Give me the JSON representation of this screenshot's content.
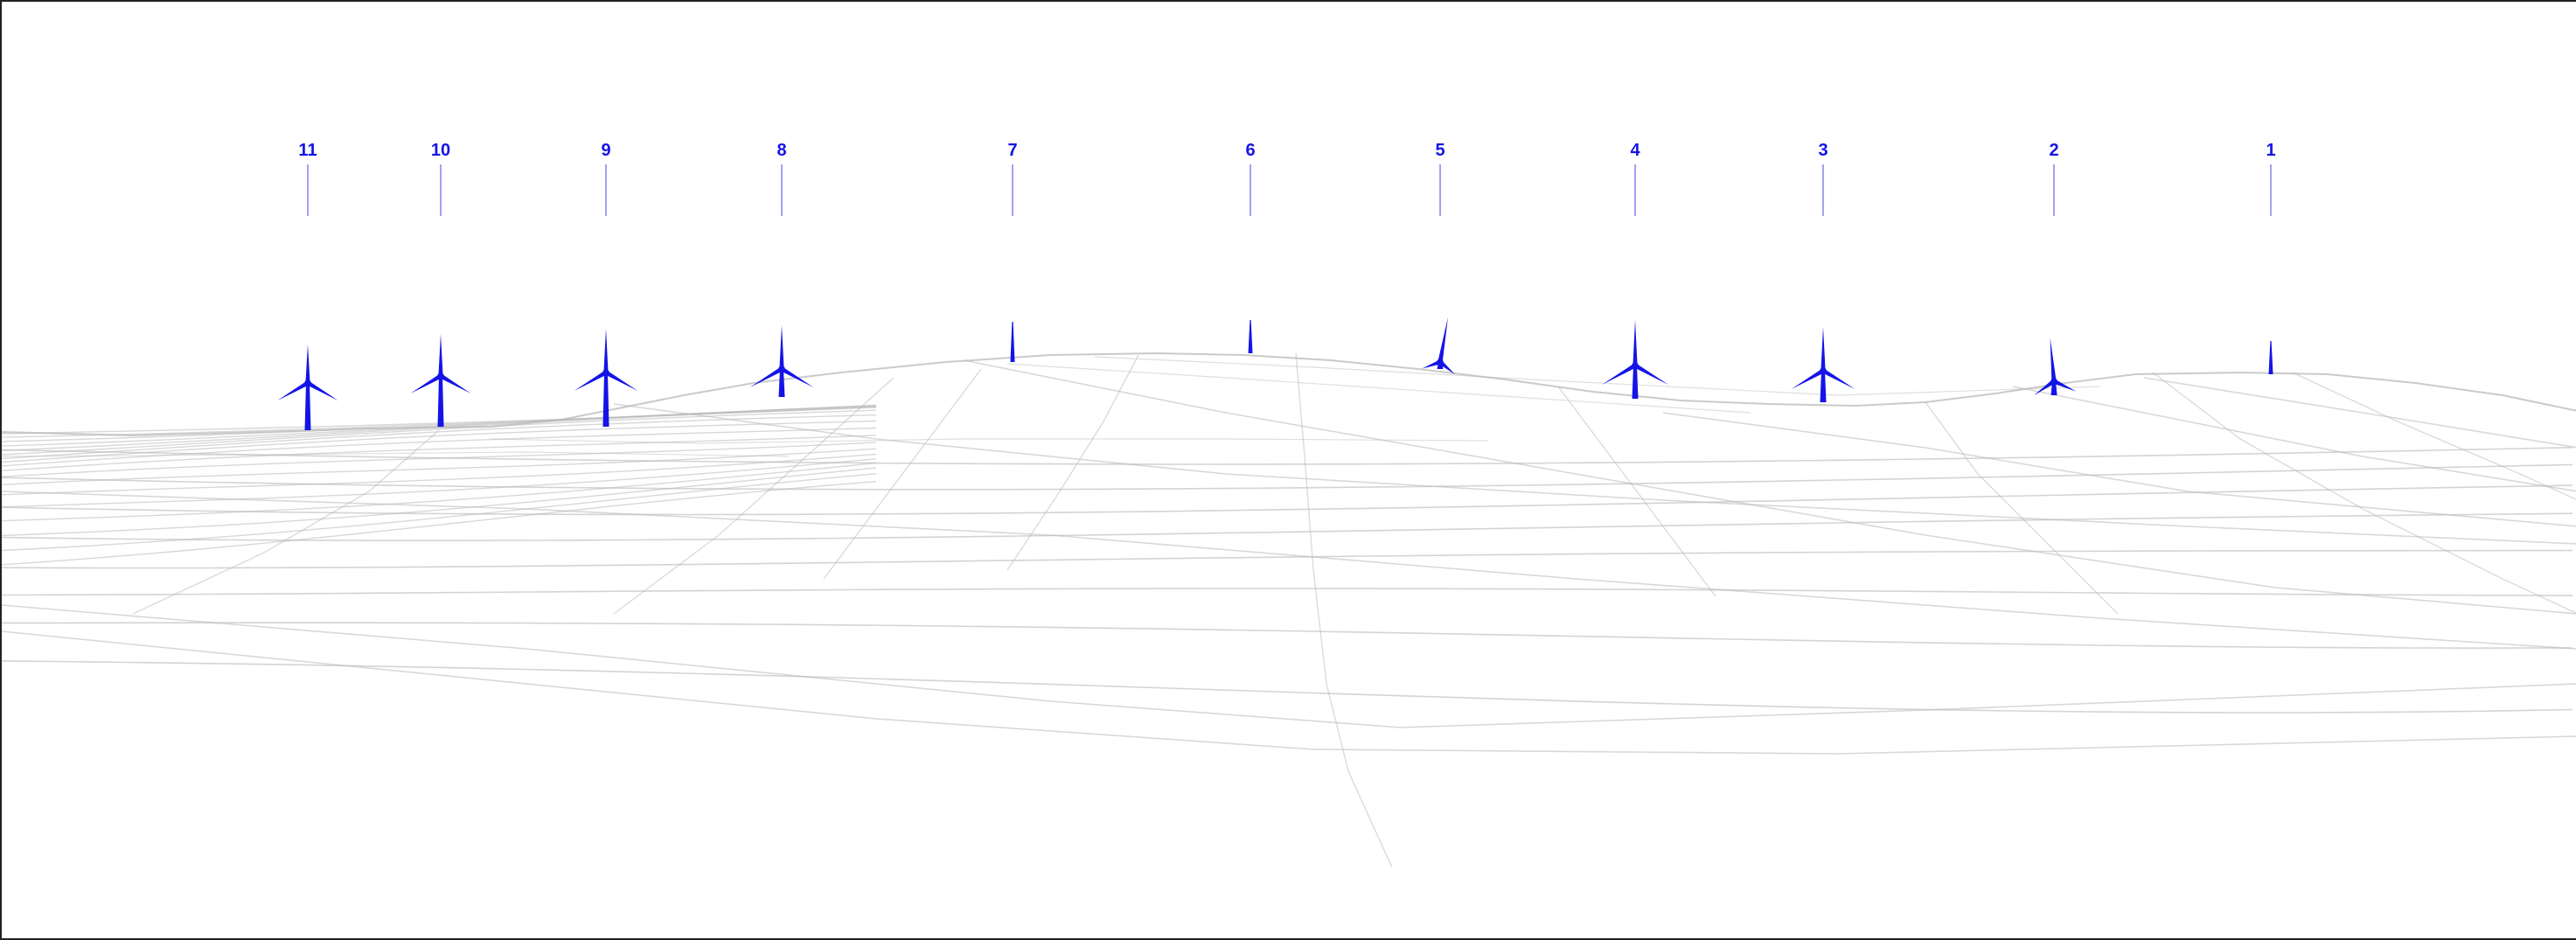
{
  "colors": {
    "turbine": "#1414e6",
    "label": "#1414e6",
    "leader": "#8a8af0",
    "terrain": "#b8b8b8",
    "frame": "#222222"
  },
  "turbines": [
    {
      "label": "11"
    },
    {
      "label": "10"
    },
    {
      "label": "9"
    },
    {
      "label": "8"
    },
    {
      "label": "7"
    },
    {
      "label": "6"
    },
    {
      "label": "5"
    },
    {
      "label": "4"
    },
    {
      "label": "3"
    },
    {
      "label": "2"
    },
    {
      "label": "1"
    }
  ]
}
